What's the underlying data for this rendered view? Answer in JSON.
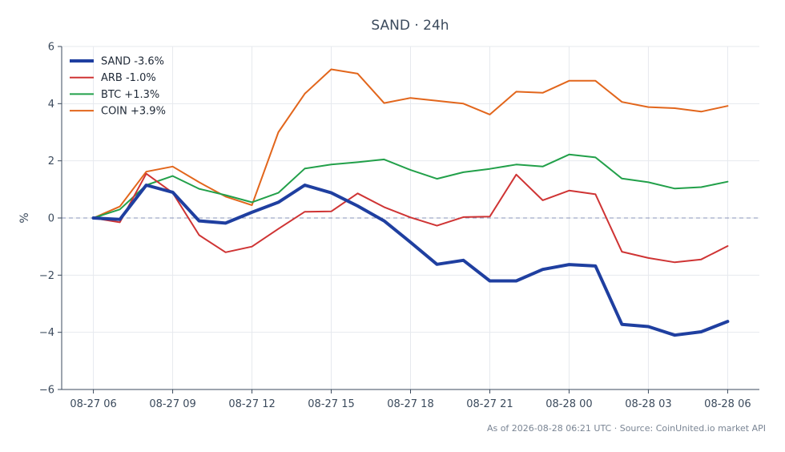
{
  "chart_data": {
    "type": "line",
    "title": "SAND · 24h",
    "xlabel": "",
    "ylabel": "%",
    "ylim": [
      -6,
      6
    ],
    "yticks": [
      -6,
      -4,
      -2,
      0,
      2,
      4,
      6
    ],
    "ytick_labels": [
      "−6",
      "−4",
      "−2",
      "0",
      "2",
      "4",
      "6"
    ],
    "x_hours": [
      0,
      1,
      2,
      3,
      4,
      5,
      6,
      7,
      8,
      9,
      10,
      11,
      12,
      13,
      14,
      15,
      16,
      17,
      18,
      19,
      20,
      21,
      22,
      23,
      24
    ],
    "x_tick_hours": [
      0,
      3,
      6,
      9,
      12,
      15,
      18,
      21,
      24
    ],
    "x_tick_labels": [
      "08-27 06",
      "08-27 09",
      "08-27 12",
      "08-27 15",
      "08-27 18",
      "08-27 21",
      "08-28 00",
      "08-28 03",
      "08-28 06"
    ],
    "xlim": [
      -1.2,
      25.2
    ],
    "grid": true,
    "zero_line": true,
    "legend_position": "top-left",
    "series": [
      {
        "name": "SAND -3.6%",
        "color": "#1f3fa0",
        "width": 4,
        "values": [
          0.0,
          -0.05,
          1.15,
          0.9,
          -0.1,
          -0.18,
          0.2,
          0.55,
          1.15,
          0.88,
          0.42,
          -0.1,
          -0.85,
          -1.62,
          -1.48,
          -2.2,
          -2.2,
          -1.8,
          -1.63,
          -1.68,
          -3.72,
          -3.8,
          -4.1,
          -3.98,
          -3.62
        ]
      },
      {
        "name": "ARB -1.0%",
        "color": "#cf3434",
        "width": 2,
        "values": [
          0.0,
          -0.15,
          1.55,
          0.88,
          -0.6,
          -1.2,
          -1.0,
          -0.38,
          0.22,
          0.23,
          0.86,
          0.38,
          0.02,
          -0.27,
          0.03,
          0.05,
          1.52,
          0.62,
          0.96,
          0.83,
          -1.18,
          -1.4,
          -1.55,
          -1.45,
          -0.98
        ]
      },
      {
        "name": "BTC +1.3%",
        "color": "#22a04a",
        "width": 2,
        "values": [
          0.0,
          0.3,
          1.15,
          1.47,
          1.02,
          0.8,
          0.55,
          0.88,
          1.73,
          1.87,
          1.95,
          2.05,
          1.68,
          1.37,
          1.6,
          1.72,
          1.87,
          1.8,
          2.22,
          2.12,
          1.38,
          1.25,
          1.03,
          1.08,
          1.27
        ]
      },
      {
        "name": "COIN +3.9%",
        "color": "#e2661c",
        "width": 2,
        "values": [
          0.0,
          0.4,
          1.62,
          1.8,
          1.25,
          0.75,
          0.45,
          3.0,
          4.35,
          5.2,
          5.05,
          4.02,
          4.2,
          4.1,
          4.0,
          3.62,
          4.42,
          4.38,
          4.8,
          4.8,
          4.06,
          3.88,
          3.84,
          3.72,
          3.92
        ]
      }
    ]
  },
  "footer": {
    "source": "As of 2026-08-28 06:21 UTC · Source: CoinUnited.io market API"
  }
}
